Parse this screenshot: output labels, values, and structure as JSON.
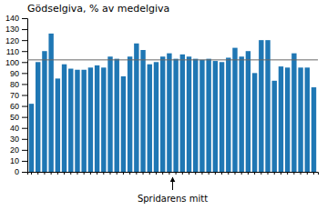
{
  "chart_data": {
    "type": "bar",
    "title": "Gödselgiva, % av medelgiva",
    "xlabel": "Spridarens mitt",
    "categories": [
      null,
      null,
      null,
      null,
      null,
      null,
      null,
      null,
      null,
      null,
      null,
      null,
      null,
      null,
      null,
      null,
      null,
      null,
      null,
      null,
      null,
      null,
      null,
      null,
      null,
      null,
      null,
      null,
      null,
      null,
      null,
      null,
      null,
      null,
      null,
      null,
      null,
      null,
      null,
      null,
      null,
      null,
      null,
      null
    ],
    "values": [
      62,
      100,
      110,
      126,
      85,
      98,
      94,
      93,
      93,
      95,
      97,
      95,
      105,
      103,
      87,
      105,
      117,
      111,
      98,
      100,
      105,
      108,
      103,
      107,
      105,
      103,
      102,
      103,
      101,
      100,
      104,
      113,
      105,
      110,
      90,
      120,
      120,
      83,
      96,
      95,
      108,
      95,
      95,
      77
    ],
    "reference_line": 102,
    "ylim": [
      0,
      140
    ],
    "yticks": [
      0,
      10,
      20,
      30,
      40,
      50,
      60,
      70,
      80,
      90,
      100,
      110,
      120,
      130,
      140
    ],
    "tick_labels": "y"
  }
}
